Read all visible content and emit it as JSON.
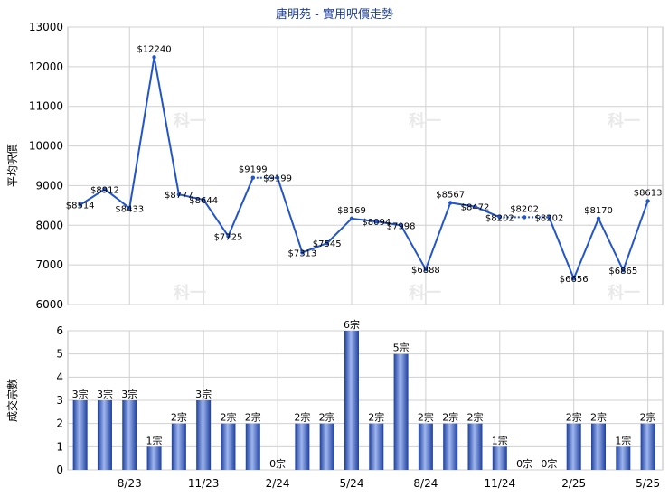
{
  "title": "唐明苑 - 實用呎價走勢",
  "watermark": "科一",
  "colors": {
    "line": "#2255cc",
    "grid": "#d0d0d0",
    "bar_light": "#8ea8e6",
    "bar_dark": "#1d3f9e",
    "title": "#1f3f99"
  },
  "chart_data": [
    {
      "type": "line",
      "title": "唐明苑 - 實用呎價走勢",
      "ylabel": "平均呎價",
      "ylim": [
        6000,
        13000
      ],
      "yticks": [
        "6000",
        "7000",
        "8000",
        "9000",
        "10000",
        "11000",
        "12000",
        "13000"
      ],
      "x": [
        1,
        2,
        3,
        4,
        5,
        6,
        7,
        8,
        9,
        10,
        11,
        12,
        13,
        14,
        15,
        16,
        17,
        18,
        19,
        20,
        21,
        22,
        23,
        24,
        25,
        26
      ],
      "values": [
        8514,
        8912,
        8433,
        12240,
        8777,
        8644,
        7725,
        9199,
        9199,
        7313,
        7545,
        8169,
        8094,
        7998,
        6888,
        8567,
        8472,
        8202,
        8202,
        8202,
        6656,
        8170,
        6865,
        8613
      ],
      "point_x": [
        1,
        2,
        3,
        4,
        5,
        6,
        7,
        8,
        9,
        10,
        11,
        12,
        13,
        14,
        15,
        16,
        17,
        18,
        19,
        20,
        21,
        22,
        23,
        24
      ],
      "labels": [
        "$8514",
        "$8912",
        "$8433",
        "$12240",
        "$8777",
        "$8644",
        "$7725",
        "$9199",
        "$9199",
        "$7313",
        "$7545",
        "$8169",
        "$8094",
        "$7998",
        "$6888",
        "$8567",
        "$8472",
        "$8202",
        "$8202",
        "$8202",
        "$6656",
        "$8170",
        "$6865",
        "$8613"
      ],
      "dotted_segments": [
        [
          7,
          8
        ],
        [
          17,
          18
        ],
        [
          18,
          19
        ]
      ],
      "grid": true
    },
    {
      "type": "bar",
      "ylabel": "成交宗數",
      "ylim": [
        0,
        6
      ],
      "yticks": [
        "0",
        "1",
        "2",
        "3",
        "4",
        "5",
        "6"
      ],
      "values": [
        3,
        3,
        3,
        1,
        2,
        3,
        2,
        2,
        0,
        2,
        2,
        6,
        2,
        5,
        2,
        2,
        2,
        1,
        0,
        0,
        2,
        2,
        1,
        2
      ],
      "labels": [
        "3宗",
        "3宗",
        "3宗",
        "1宗",
        "2宗",
        "3宗",
        "2宗",
        "2宗",
        "0宗",
        "2宗",
        "2宗",
        "6宗",
        "2宗",
        "5宗",
        "2宗",
        "2宗",
        "2宗",
        "1宗",
        "0宗",
        "0宗",
        "2宗",
        "2宗",
        "1宗",
        "2宗"
      ],
      "xticks": [
        "8/23",
        "11/23",
        "2/24",
        "5/24",
        "8/24",
        "11/24",
        "2/25",
        "5/25"
      ],
      "xtick_index": [
        2,
        5,
        8,
        11,
        14,
        17,
        20,
        23
      ],
      "grid": true
    }
  ]
}
